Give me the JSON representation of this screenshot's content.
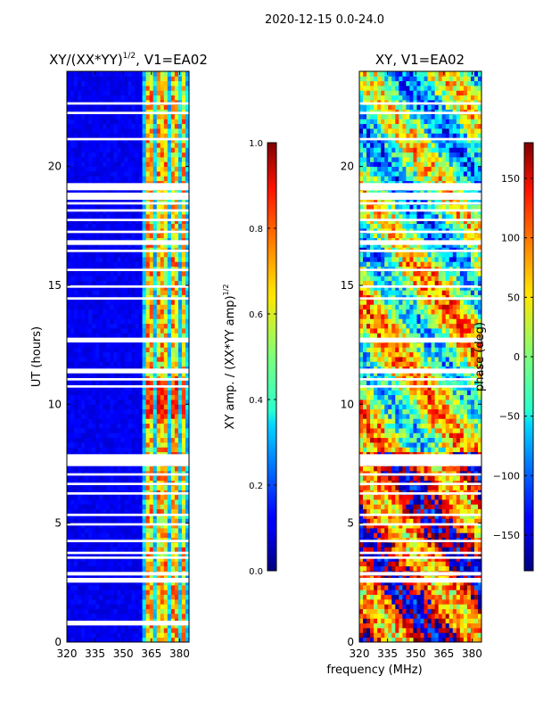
{
  "figure": {
    "suptitle": "2020-12-15 0.0-24.0",
    "xlabel": "frequency (MHz)"
  },
  "chart_data": [
    {
      "type": "heatmap",
      "title_main": "XY/(XX*YY)",
      "title_sup": "1/2",
      "title_rest": ", V1=EA02",
      "xlabel": "",
      "ylabel": "UT (hours)",
      "xlim": [
        320,
        385
      ],
      "ylim": [
        0,
        24
      ],
      "xticks": [
        320,
        335,
        350,
        365,
        380
      ],
      "yticks": [
        0,
        5,
        10,
        15,
        20
      ],
      "colorbar": {
        "label_main": "XY amp. / (XX*YY amp)",
        "label_sup": "1/2",
        "range": [
          0.0,
          1.0
        ],
        "ticks": [
          "0.0",
          "0.2",
          "0.4",
          "0.6",
          "0.8",
          "1.0"
        ],
        "tick_values": [
          0.0,
          0.2,
          0.4,
          0.6,
          0.8,
          1.0
        ]
      },
      "flagged_ut_bands": [
        [
          0.7,
          0.9
        ],
        [
          2.5,
          2.7
        ],
        [
          2.8,
          2.95
        ],
        [
          3.5,
          3.6
        ],
        [
          3.7,
          3.8
        ],
        [
          4.2,
          4.3
        ],
        [
          4.9,
          5.0
        ],
        [
          5.3,
          5.4
        ],
        [
          6.2,
          6.3
        ],
        [
          6.6,
          6.7
        ],
        [
          7.0,
          7.1
        ],
        [
          7.4,
          7.9
        ],
        [
          10.7,
          10.8
        ],
        [
          11.0,
          11.1
        ],
        [
          11.3,
          11.5
        ],
        [
          12.6,
          12.8
        ],
        [
          14.4,
          14.5
        ],
        [
          14.9,
          15.0
        ],
        [
          15.6,
          15.7
        ],
        [
          16.4,
          16.5
        ],
        [
          16.7,
          16.9
        ],
        [
          17.2,
          17.3
        ],
        [
          17.7,
          17.8
        ],
        [
          18.1,
          18.2
        ],
        [
          18.4,
          18.5
        ],
        [
          18.6,
          18.9
        ],
        [
          19.0,
          19.3
        ],
        [
          21.1,
          21.2
        ],
        [
          22.2,
          22.3
        ],
        [
          22.6,
          22.7
        ]
      ],
      "bright_channels_mhz": [
        [
          362,
          366
        ],
        [
          367.5,
          369
        ],
        [
          370.5,
          373
        ],
        [
          375,
          377
        ],
        [
          378,
          380
        ],
        [
          382,
          384
        ]
      ],
      "low_band_level": 0.08,
      "high_band_level": 0.5
    },
    {
      "type": "heatmap",
      "title": "XY, V1=EA02",
      "xlabel": "",
      "ylabel": "",
      "xlim": [
        320,
        385
      ],
      "ylim": [
        0,
        24
      ],
      "xticks": [
        320,
        335,
        350,
        365,
        380
      ],
      "yticks": [
        0,
        5,
        10,
        15,
        20
      ],
      "colorbar": {
        "label": "phase (deg)",
        "range": [
          -180,
          180
        ],
        "ticks": [
          "150",
          "100",
          "50",
          "0",
          "−50",
          "−100",
          "−150"
        ],
        "tick_values": [
          150,
          100,
          50,
          0,
          -50,
          -100,
          -150
        ]
      },
      "flagged_ut_bands": [
        [
          2.5,
          2.7
        ],
        [
          2.8,
          2.95
        ],
        [
          3.5,
          3.6
        ],
        [
          3.7,
          3.8
        ],
        [
          4.2,
          4.3
        ],
        [
          4.9,
          5.0
        ],
        [
          5.3,
          5.4
        ],
        [
          6.2,
          6.3
        ],
        [
          6.6,
          6.7
        ],
        [
          7.0,
          7.1
        ],
        [
          7.4,
          7.9
        ],
        [
          10.7,
          10.8
        ],
        [
          11.0,
          11.1
        ],
        [
          11.3,
          11.5
        ],
        [
          12.6,
          12.8
        ],
        [
          14.4,
          14.5
        ],
        [
          14.9,
          15.0
        ],
        [
          15.6,
          15.7
        ],
        [
          16.4,
          16.5
        ],
        [
          16.7,
          16.9
        ],
        [
          17.2,
          17.3
        ],
        [
          17.7,
          17.8
        ],
        [
          18.1,
          18.2
        ],
        [
          18.4,
          18.5
        ],
        [
          18.6,
          18.9
        ],
        [
          19.0,
          19.3
        ],
        [
          21.1,
          21.2
        ],
        [
          22.2,
          22.3
        ],
        [
          22.6,
          22.7
        ]
      ],
      "phase_regimes": [
        {
          "ut": [
            0,
            8
          ],
          "mean_deg": 130
        },
        {
          "ut": [
            8,
            16
          ],
          "mean_deg": 20
        },
        {
          "ut": [
            16,
            24
          ],
          "mean_deg": -20
        }
      ]
    }
  ]
}
